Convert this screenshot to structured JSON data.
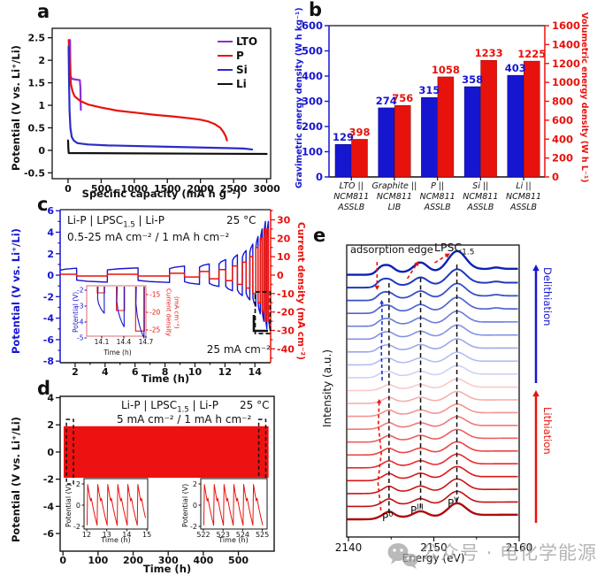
{
  "watermark": {
    "icon": "wechat-icon",
    "text": "公众号 · 电化学能源"
  },
  "chart_data": [
    {
      "id": "a",
      "type": "line",
      "label": "a",
      "xlabel": "Specific capacity (mA h g⁻¹)",
      "ylabel": "Potential (V vs. Li⁺/Li)",
      "xticks": [
        0,
        500,
        1000,
        1500,
        2000,
        2500,
        3000
      ],
      "yticks": [
        -0.5,
        0,
        0.5,
        1,
        1.5,
        2,
        2.5
      ],
      "xlim": [
        -240,
        3060
      ],
      "ylim": [
        -0.63,
        2.71
      ],
      "legend": [
        {
          "label": "LTO",
          "color": "#8a2fd6"
        },
        {
          "label": "P",
          "color": "#e8120c"
        },
        {
          "label": "Si",
          "color": "#2c2cc8"
        },
        {
          "label": "Li",
          "color": "#111111"
        }
      ],
      "series": [
        {
          "name": "LTO",
          "color": "#8a2fd6",
          "width": 2.2,
          "points": [
            [
              30,
              2.45
            ],
            [
              33,
              2.0
            ],
            [
              38,
              1.65
            ],
            [
              55,
              1.59
            ],
            [
              120,
              1.57
            ],
            [
              178,
              1.56
            ],
            [
              186,
              1.4
            ],
            [
              190,
              1.1
            ],
            [
              193,
              0.9
            ]
          ]
        },
        {
          "name": "P",
          "color": "#e8120c",
          "width": 2.2,
          "points": [
            [
              10,
              2.45
            ],
            [
              18,
              2.1
            ],
            [
              28,
              1.75
            ],
            [
              45,
              1.45
            ],
            [
              70,
              1.3
            ],
            [
              100,
              1.2
            ],
            [
              180,
              1.1
            ],
            [
              300,
              1.02
            ],
            [
              500,
              0.95
            ],
            [
              750,
              0.88
            ],
            [
              1000,
              0.84
            ],
            [
              1300,
              0.79
            ],
            [
              1600,
              0.75
            ],
            [
              1850,
              0.71
            ],
            [
              2000,
              0.68
            ],
            [
              2120,
              0.64
            ],
            [
              2220,
              0.58
            ],
            [
              2300,
              0.5
            ],
            [
              2350,
              0.4
            ],
            [
              2385,
              0.3
            ],
            [
              2400,
              0.22
            ]
          ]
        },
        {
          "name": "Si",
          "color": "#2c2cc8",
          "width": 2.2,
          "points": [
            [
              8,
              2.3
            ],
            [
              14,
              1.6
            ],
            [
              22,
              0.9
            ],
            [
              35,
              0.5
            ],
            [
              55,
              0.3
            ],
            [
              85,
              0.22
            ],
            [
              140,
              0.16
            ],
            [
              300,
              0.13
            ],
            [
              600,
              0.11
            ],
            [
              1200,
              0.09
            ],
            [
              1800,
              0.07
            ],
            [
              2400,
              0.05
            ],
            [
              2650,
              0.04
            ],
            [
              2780,
              0.02
            ]
          ]
        },
        {
          "name": "Li",
          "color": "#111111",
          "width": 2.2,
          "points": [
            [
              0,
              0.22
            ],
            [
              4,
              0.05
            ],
            [
              10,
              -0.06
            ],
            [
              3000,
              -0.08
            ]
          ]
        }
      ]
    },
    {
      "id": "b",
      "type": "bar",
      "label": "b",
      "ylabel_left": "Gravimetric energy density (W h kg⁻¹)",
      "ylabel_right": "Volumetric energy density (W h L⁻¹)",
      "yticks_left": [
        0,
        100,
        200,
        300,
        400,
        500,
        600
      ],
      "yticks_right": [
        0,
        200,
        400,
        600,
        800,
        1000,
        1200,
        1400,
        1600
      ],
      "ylim_left": [
        0,
        600
      ],
      "ylim_right": [
        0,
        1600
      ],
      "left_color": "#1616d1",
      "right_color": "#e8120c",
      "categories": [
        [
          "LTO ||",
          "NCM811",
          "ASSLB"
        ],
        [
          "Graphite ||",
          "NCM811",
          "LIB"
        ],
        [
          "P ||",
          "NCM811",
          "ASSLB"
        ],
        [
          "Si ||",
          "NCM811",
          "ASSLB"
        ],
        [
          "Li ||",
          "NCM811",
          "ASSLB"
        ]
      ],
      "series": [
        {
          "name": "Gravimetric energy density",
          "color": "#1616d1",
          "values": [
            129,
            274,
            315,
            358,
            403
          ]
        },
        {
          "name": "Volumetric energy density",
          "color": "#e8120c",
          "values": [
            398,
            756,
            1058,
            1233,
            1225
          ]
        }
      ]
    },
    {
      "id": "c",
      "type": "line",
      "label": "c",
      "cell_pre": "Li-P | LPSC",
      "cell_sub": "1.5",
      "cell_post": " | Li-P",
      "temperature": "25 °C",
      "protocol": "0.5-25 mA cm⁻² / 1 mA h cm⁻²",
      "note": "25 mA cm⁻²",
      "xlabel": "Time (h)",
      "ylabel_left": "Potential (V vs. Li⁺/Li)",
      "ylabel_right": "Current density (mA cm⁻²)",
      "left_color": "#1616d1",
      "right_color": "#e8120c",
      "xticks": [
        2,
        4,
        6,
        8,
        10,
        12,
        14
      ],
      "xlim": [
        1,
        15.05
      ],
      "yticks_left": [
        -8,
        -6,
        -4,
        -2,
        0,
        2,
        4,
        6
      ],
      "ylim_left": [
        -8.15,
        6.1
      ],
      "yticks_right": [
        -40,
        -30,
        -20,
        -10,
        0,
        10,
        20,
        30
      ],
      "ylim_right": [
        -47.5,
        35.5
      ],
      "segments": [
        {
          "d": 1.1,
          "i": 0.5,
          "v": 0.65
        },
        {
          "d": 2.05,
          "i": -0.5,
          "v": -0.65
        },
        {
          "d": 2.05,
          "i": 0.5,
          "v": 0.68
        },
        {
          "d": 2.1,
          "i": -0.5,
          "v": -0.68
        },
        {
          "d": 1.0,
          "i": 1,
          "v": 0.85
        },
        {
          "d": 1.0,
          "i": -1,
          "v": -0.85
        },
        {
          "d": 0.65,
          "i": 2,
          "v": 1.05
        },
        {
          "d": 0.65,
          "i": -2,
          "v": -1.05
        },
        {
          "d": 0.45,
          "i": 3,
          "v": 1.45
        },
        {
          "d": 0.45,
          "i": -3,
          "v": -1.45
        },
        {
          "d": 0.33,
          "i": 5,
          "v": 1.9
        },
        {
          "d": 0.33,
          "i": -5,
          "v": -1.9
        },
        {
          "d": 0.25,
          "i": 7,
          "v": 2.3
        },
        {
          "d": 0.25,
          "i": -7,
          "v": -2.3
        },
        {
          "d": 0.2,
          "i": 10,
          "v": 2.9
        },
        {
          "d": 0.2,
          "i": -10,
          "v": -2.9
        },
        {
          "d": 0.15,
          "i": 15,
          "v": 3.6
        },
        {
          "d": 0.15,
          "i": -15,
          "v": -3.6
        },
        {
          "d": 0.12,
          "i": 20,
          "v": 4.3
        },
        {
          "d": 0.12,
          "i": -20,
          "v": -4.3
        },
        {
          "d": 0.1,
          "i": 25,
          "v": 5.0
        },
        {
          "d": 0.1,
          "i": -25,
          "v": -5.0
        },
        {
          "d": 0.1,
          "i": 25,
          "v": 5.0
        },
        {
          "d": 0.1,
          "i": -25,
          "v": -5.0
        }
      ],
      "inset": {
        "xlabel": "Time (h)",
        "ylabel_left": "Potential (V)",
        "ylabel_right_1": "Current density",
        "ylabel_right_2": "(mA cm⁻²)",
        "xticks": [
          14.1,
          14.4,
          14.7
        ],
        "yticks_left": [
          -2,
          -3,
          -4,
          -5
        ],
        "yticks_right": [
          -15,
          -20,
          -25
        ],
        "spikes": [
          {
            "t": 14.04,
            "w": 0.1,
            "v": -3.45,
            "i": -14.5
          },
          {
            "t": 14.3,
            "w": 0.11,
            "v": -4.3,
            "i": -19.5
          },
          {
            "t": 14.56,
            "w": 0.12,
            "v": -5.0,
            "i": -25.3
          }
        ]
      }
    },
    {
      "id": "d",
      "type": "line",
      "label": "d",
      "cell_pre": "Li-P | LPSC",
      "cell_sub": "1.5",
      "cell_post": " | Li-P",
      "temperature": "25 °C",
      "protocol": "5 mA cm⁻² / 1 mA h cm⁻²",
      "xlabel": "Time (h)",
      "ylabel": "Potential (V vs. Li⁺/Li)",
      "xticks": [
        0,
        100,
        200,
        300,
        400,
        500
      ],
      "xlim": [
        -8,
        602
      ],
      "yticks": [
        -6,
        -4,
        -2,
        0,
        2,
        4
      ],
      "ylim": [
        -7.3,
        4.1
      ],
      "band": {
        "x0": 2,
        "x1": 586,
        "y0": -1.9,
        "y1": 1.9,
        "color": "#ee1111"
      },
      "dashed_boxes": [
        {
          "x0": 10,
          "x1": 30,
          "y0": -2.35,
          "y1": 2.4
        },
        {
          "x0": 558,
          "x1": 578,
          "y0": -2.35,
          "y1": 2.4
        }
      ],
      "insets": [
        {
          "xlabel": "Time (h)",
          "ylabel": "Potential (V)",
          "xticks": [
            12,
            13,
            14,
            15
          ],
          "yticks": [
            -2,
            0,
            2
          ],
          "t0": 12.02,
          "cycles": 6
        },
        {
          "xlabel": "Time (h)",
          "ylabel": "Potential (V)",
          "xticks": [
            522,
            523,
            524,
            525
          ],
          "yticks": [
            -2,
            0,
            2
          ],
          "t0": 522.02,
          "cycles": 6
        }
      ]
    },
    {
      "id": "e",
      "type": "line",
      "label": "e",
      "xlabel": "Energy (eV)",
      "ylabel": "Intensity (a.u.)",
      "xticks": [
        2140,
        2150,
        2160
      ],
      "xlim": [
        2139.8,
        2160
      ],
      "annotation_edge": "adsorption edge",
      "annotation_lpsc_pre": "LPSC",
      "annotation_lpsc_sub": "1.5",
      "peak_labels": [
        {
          "base": "P",
          "sup": "0",
          "energy": 2144.7
        },
        {
          "base": "P",
          "sup": "III",
          "energy": 2148.4
        },
        {
          "base": "P",
          "sup": "V",
          "energy": 2152.7
        }
      ],
      "dashed_peaks": [
        2144.75,
        2148.45,
        2152.7
      ],
      "right_labels": [
        {
          "text": "Delithiation",
          "color": "#1616d1"
        },
        {
          "text": "Lithiation",
          "color": "#e8120c"
        }
      ],
      "curves": [
        {
          "color": "#ad0c0c",
          "w": 2.4,
          "a0": 6,
          "a1": 6.5,
          "a2": 15,
          "edge": 2.6,
          "b": 0,
          "n": 0
        },
        {
          "color": "#c11010",
          "w": 1.6,
          "a0": 6,
          "a1": 6.2,
          "a2": 14,
          "edge": 2.6,
          "b": 0,
          "n": 0
        },
        {
          "color": "#cf1313",
          "w": 1.6,
          "a0": 5.8,
          "a1": 6,
          "a2": 13.5,
          "edge": 2.5,
          "b": 0,
          "n": 0
        },
        {
          "color": "#dc1717",
          "w": 1.6,
          "a0": 5.6,
          "a1": 6,
          "a2": 13,
          "edge": 2.5,
          "b": 0,
          "n": 0
        },
        {
          "color": "#e52a2a",
          "w": 1.6,
          "a0": 5.4,
          "a1": 5.6,
          "a2": 12.5,
          "edge": 2.5,
          "b": 0,
          "n": 0
        },
        {
          "color": "#ea4343",
          "w": 1.6,
          "a0": 5.2,
          "a1": 5.4,
          "a2": 12,
          "edge": 2.4,
          "b": 0,
          "n": 0
        },
        {
          "color": "#ef5d5d",
          "w": 1.6,
          "a0": 5,
          "a1": 5.2,
          "a2": 11.5,
          "edge": 2.4,
          "b": 0,
          "n": 0
        },
        {
          "color": "#f27878",
          "w": 1.6,
          "a0": 5,
          "a1": 5,
          "a2": 11.5,
          "edge": 2.3,
          "b": 0,
          "n": 0
        },
        {
          "color": "#f59393",
          "w": 1.6,
          "a0": 4.8,
          "a1": 5,
          "a2": 11,
          "edge": 2.3,
          "b": 0,
          "n": 0
        },
        {
          "color": "#f8aeae",
          "w": 1.6,
          "a0": 4.6,
          "a1": 4.8,
          "a2": 11,
          "edge": 2.2,
          "b": 0,
          "n": 0
        },
        {
          "color": "#fac9c9",
          "w": 1.6,
          "a0": 4.5,
          "a1": 4.6,
          "a2": 10.5,
          "edge": 2.2,
          "b": 0,
          "n": 0
        },
        {
          "color": "#ccd2f4",
          "w": 1.6,
          "a0": 4.5,
          "a1": 5,
          "a2": 11,
          "edge": 2.3,
          "b": 2,
          "n": 0
        },
        {
          "color": "#b4bdf0",
          "w": 1.6,
          "a0": 4.8,
          "a1": 5.5,
          "a2": 11.5,
          "edge": 2.3,
          "b": 2.4,
          "n": 0
        },
        {
          "color": "#9ba8ea",
          "w": 1.6,
          "a0": 5,
          "a1": 6,
          "a2": 12,
          "edge": 2.4,
          "b": 2.8,
          "n": 0
        },
        {
          "color": "#8292e3",
          "w": 1.6,
          "a0": 5.4,
          "a1": 6.5,
          "a2": 13,
          "edge": 2.4,
          "b": 3,
          "n": 0
        },
        {
          "color": "#697cdb",
          "w": 1.6,
          "a0": 5.6,
          "a1": 7,
          "a2": 14,
          "edge": 2.5,
          "b": 3.4,
          "n": 0
        },
        {
          "color": "#5065d2",
          "w": 1.7,
          "a0": 6,
          "a1": 7.5,
          "a2": 15,
          "edge": 2.5,
          "b": 3.8,
          "n": 1.2
        },
        {
          "color": "#374fc8",
          "w": 1.8,
          "a0": 6.2,
          "a1": 8,
          "a2": 16,
          "edge": 2.6,
          "b": 4.2,
          "n": 1.3
        },
        {
          "color": "#1e38bd",
          "w": 2.0,
          "a0": 6.5,
          "a1": 9,
          "a2": 17.5,
          "edge": 2.6,
          "b": 4.6,
          "n": 1.4
        },
        {
          "color": "#0c22b2",
          "w": 2.4,
          "a0": 7,
          "a1": 11,
          "a2": 23,
          "edge": 2.8,
          "b": 5,
          "n": 1.6
        }
      ]
    }
  ]
}
